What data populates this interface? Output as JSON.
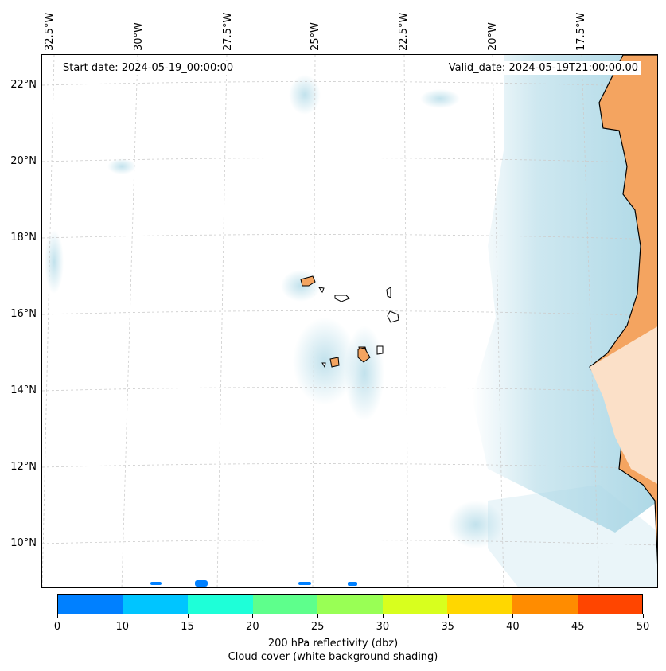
{
  "map": {
    "start_date": "Start date: 2024-05-19_00:00:00",
    "valid_date": "Valid_date: 2024-05-19T21:00:00.00",
    "lon_labels": [
      "32.5°W",
      "30°W",
      "27.5°W",
      "25°W",
      "22.5°W",
      "20°W",
      "17.5°W"
    ],
    "lat_labels": [
      "22°N",
      "20°N",
      "18°N",
      "16°N",
      "14°N",
      "12°N",
      "10°N"
    ]
  },
  "colorbar": {
    "colors": [
      "#0080ff",
      "#00c5ff",
      "#1effd8",
      "#5eff8c",
      "#99ff55",
      "#d8ff1e",
      "#ffd700",
      "#ff8c00",
      "#ff4500"
    ],
    "ticks": [
      "0",
      "10",
      "15",
      "20",
      "25",
      "30",
      "35",
      "40",
      "45",
      "50"
    ],
    "title": "200 hPa reflectivity (dbz)",
    "subtitle": "Cloud cover (white background shading)"
  },
  "colors": {
    "land": "#f4a460",
    "cloud": "#add8e6"
  }
}
